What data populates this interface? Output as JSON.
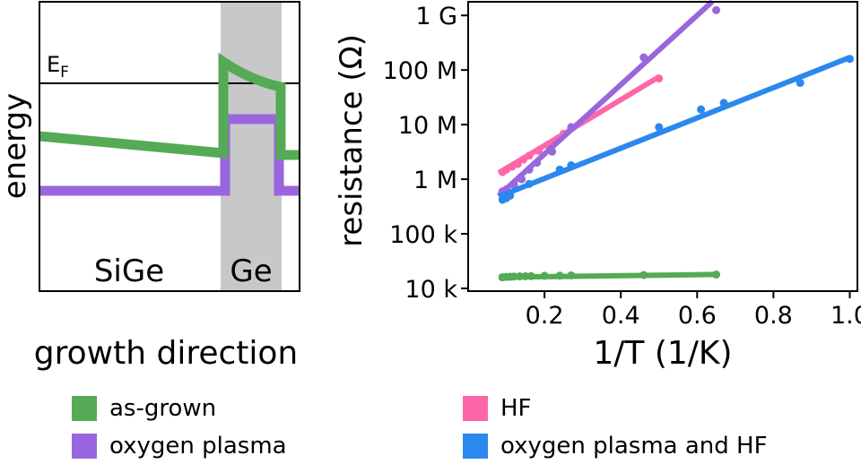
{
  "chart_data": [
    {
      "type": "diagram",
      "title": "",
      "xlabel": "growth direction",
      "ylabel": "energy",
      "fermi_label_main": "E",
      "fermi_label_sub": "F",
      "regions": [
        {
          "name": "SiGe",
          "label": "SiGe"
        },
        {
          "name": "Ge",
          "label": "Ge"
        }
      ],
      "band_profiles": [
        {
          "name": "as-grown",
          "color": "#55aa55"
        },
        {
          "name": "oxygen plasma",
          "color": "#9966dd"
        }
      ]
    },
    {
      "type": "scatter",
      "title": "",
      "xlabel": "1/T (1/K)",
      "ylabel": "resistance (Ω)",
      "xlim": [
        0.0,
        1.02
      ],
      "ylim_log10": [
        3.95,
        9.25
      ],
      "x_ticks": [
        {
          "value": 0.2,
          "label": "0.2"
        },
        {
          "value": 0.4,
          "label": "0.4"
        },
        {
          "value": 0.6,
          "label": "0.6"
        },
        {
          "value": 0.8,
          "label": "0.8"
        },
        {
          "value": 1.0,
          "label": "1.0"
        }
      ],
      "y_ticks": [
        {
          "value": 10000,
          "label": "10 k"
        },
        {
          "value": 100000,
          "label": "100 k"
        },
        {
          "value": 1000000,
          "label": "1 M"
        },
        {
          "value": 10000000,
          "label": "10 M"
        },
        {
          "value": 100000000,
          "label": "100 M"
        },
        {
          "value": 1000000000,
          "label": "1 G"
        }
      ],
      "series": [
        {
          "name": "as-grown",
          "color": "#55aa55",
          "points": [
            [
              0.09,
              16000
            ],
            [
              0.1,
              16200
            ],
            [
              0.11,
              16300
            ],
            [
              0.12,
              16500
            ],
            [
              0.135,
              16600
            ],
            [
              0.15,
              16700
            ],
            [
              0.165,
              16800
            ],
            [
              0.2,
              17000
            ],
            [
              0.24,
              17100
            ],
            [
              0.27,
              17300
            ],
            [
              0.46,
              17600
            ],
            [
              0.65,
              17900
            ]
          ],
          "fit": [
            [
              0.08,
              16000
            ],
            [
              0.65,
              18000
            ]
          ]
        },
        {
          "name": "HF",
          "color": "#ff66aa",
          "points": [
            [
              0.09,
              1350000
            ],
            [
              0.1,
              1500000
            ],
            [
              0.115,
              1700000
            ],
            [
              0.13,
              1900000
            ],
            [
              0.145,
              2300000
            ],
            [
              0.16,
              2700000
            ],
            [
              0.185,
              3300000
            ],
            [
              0.21,
              4200000
            ],
            [
              0.235,
              5500000
            ],
            [
              0.25,
              6800000
            ],
            [
              0.27,
              8500000
            ],
            [
              0.5,
              70000000
            ]
          ],
          "fit": [
            [
              0.08,
              1300000
            ],
            [
              0.5,
              75000000
            ]
          ]
        },
        {
          "name": "oxygen plasma",
          "color": "#9966dd",
          "points": [
            [
              0.09,
              600000
            ],
            [
              0.1,
              650000
            ],
            [
              0.12,
              800000
            ],
            [
              0.14,
              1000000
            ],
            [
              0.16,
              1500000
            ],
            [
              0.18,
              2000000
            ],
            [
              0.22,
              3200000
            ],
            [
              0.27,
              9000000
            ],
            [
              0.46,
              170000000
            ],
            [
              0.65,
              1250000000
            ]
          ],
          "fit": [
            [
              0.08,
              500000
            ],
            [
              0.64,
              1800000000
            ]
          ]
        },
        {
          "name": "oxygen plasma and HF",
          "color": "#2a88ee",
          "points": [
            [
              0.09,
              420000
            ],
            [
              0.1,
              450000
            ],
            [
              0.11,
              500000
            ],
            [
              0.16,
              820000
            ],
            [
              0.24,
              1500000
            ],
            [
              0.27,
              1800000
            ],
            [
              0.5,
              9000000
            ],
            [
              0.61,
              19000000
            ],
            [
              0.67,
              25000000
            ],
            [
              0.87,
              58000000
            ],
            [
              1.0,
              160000000
            ]
          ],
          "fit": [
            [
              0.08,
              480000
            ],
            [
              1.0,
              170000000
            ]
          ]
        }
      ]
    }
  ],
  "legend": [
    {
      "label": "as-grown",
      "color": "#55aa55"
    },
    {
      "label": "oxygen plasma",
      "color": "#9966dd"
    },
    {
      "label": "HF",
      "color": "#ff66aa"
    },
    {
      "label": "oxygen plasma and HF",
      "color": "#2a88ee"
    }
  ]
}
